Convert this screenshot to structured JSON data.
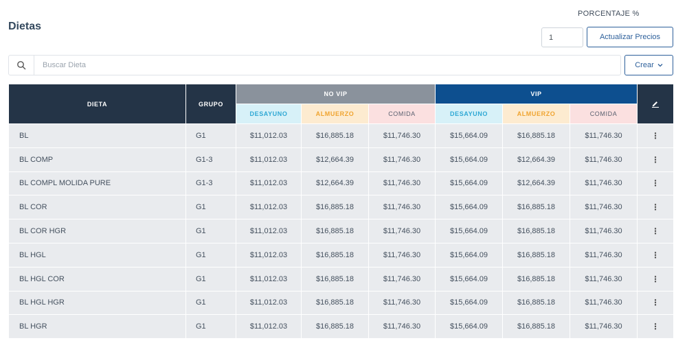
{
  "header": {
    "title": "Dietas",
    "percent_label": "PORCENTAJE %",
    "percent_value": "1",
    "update_button": "Actualizar Precios"
  },
  "search": {
    "placeholder": "Buscar Dieta",
    "icon": "search-icon",
    "create_button": "Crear"
  },
  "table": {
    "headers": {
      "dieta": "DIETA",
      "grupo": "GRUPO",
      "novip": "NO VIP",
      "vip": "VIP",
      "desayuno": "DESAYUNO",
      "almuerzo": "ALMUERZO",
      "comida": "COMIDA",
      "edit_icon": "pencil-icon"
    },
    "rows": [
      {
        "dieta": "BL",
        "grupo": "G1",
        "nv_des": "$11,012.03",
        "nv_alm": "$16,885.18",
        "nv_com": "$11,746.30",
        "v_des": "$15,664.09",
        "v_alm": "$16,885.18",
        "v_com": "$11,746.30",
        "menu": "⋮"
      },
      {
        "dieta": "BL COMP",
        "grupo": "G1-3",
        "nv_des": "$11,012.03",
        "nv_alm": "$12,664.39",
        "nv_com": "$11,746.30",
        "v_des": "$15,664.09",
        "v_alm": "$12,664.39",
        "v_com": "$11,746.30",
        "menu": "⋮"
      },
      {
        "dieta": "BL COMPL MOLIDA PURE",
        "grupo": "G1-3",
        "nv_des": "$11,012.03",
        "nv_alm": "$12,664.39",
        "nv_com": "$11,746.30",
        "v_des": "$15,664.09",
        "v_alm": "$12,664.39",
        "v_com": "$11,746.30",
        "menu": "⋮"
      },
      {
        "dieta": "BL COR",
        "grupo": "G1",
        "nv_des": "$11,012.03",
        "nv_alm": "$16,885.18",
        "nv_com": "$11,746.30",
        "v_des": "$15,664.09",
        "v_alm": "$16,885.18",
        "v_com": "$11,746.30",
        "menu": "⋮"
      },
      {
        "dieta": "BL COR HGR",
        "grupo": "G1",
        "nv_des": "$11,012.03",
        "nv_alm": "$16,885.18",
        "nv_com": "$11,746.30",
        "v_des": "$15,664.09",
        "v_alm": "$16,885.18",
        "v_com": "$11,746.30",
        "menu": "⋮"
      },
      {
        "dieta": "BL HGL",
        "grupo": "G1",
        "nv_des": "$11,012.03",
        "nv_alm": "$16,885.18",
        "nv_com": "$11,746.30",
        "v_des": "$15,664.09",
        "v_alm": "$16,885.18",
        "v_com": "$11,746.30",
        "menu": "⋮"
      },
      {
        "dieta": "BL HGL COR",
        "grupo": "G1",
        "nv_des": "$11,012.03",
        "nv_alm": "$16,885.18",
        "nv_com": "$11,746.30",
        "v_des": "$15,664.09",
        "v_alm": "$16,885.18",
        "v_com": "$11,746.30",
        "menu": "⋮"
      },
      {
        "dieta": "BL HGL HGR",
        "grupo": "G1",
        "nv_des": "$11,012.03",
        "nv_alm": "$16,885.18",
        "nv_com": "$11,746.30",
        "v_des": "$15,664.09",
        "v_alm": "$16,885.18",
        "v_com": "$11,746.30",
        "menu": "⋮"
      },
      {
        "dieta": "BL HGR",
        "grupo": "G1",
        "nv_des": "$11,012.03",
        "nv_alm": "$16,885.18",
        "nv_com": "$11,746.30",
        "v_des": "$15,664.09",
        "v_alm": "$16,885.18",
        "v_com": "$11,746.30",
        "menu": "⋮"
      }
    ]
  }
}
